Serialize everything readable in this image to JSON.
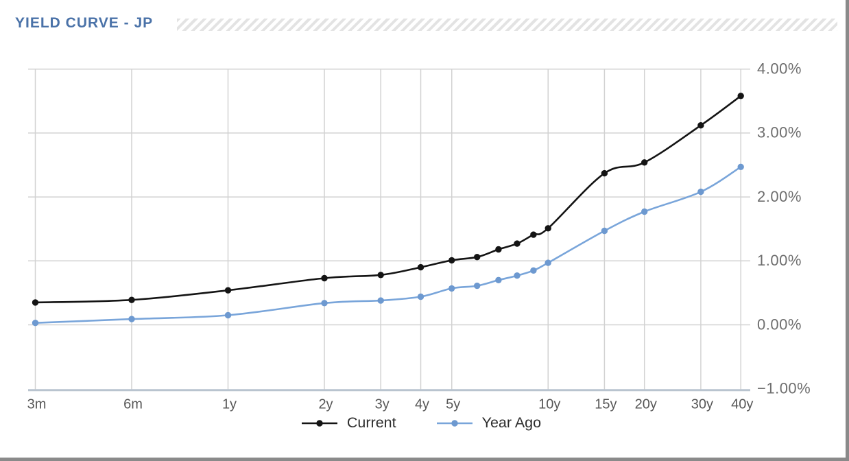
{
  "header": {
    "title": "YIELD CURVE - JP",
    "title_color": "#4a72a8"
  },
  "chart_data": {
    "type": "line",
    "title": "YIELD CURVE - JP",
    "x_scale": "log",
    "xlabel": "",
    "ylabel": "",
    "ylim": [
      -1,
      4
    ],
    "grid": true,
    "legend_position": "bottom",
    "x_maturities_years": [
      0.25,
      0.5,
      1,
      2,
      3,
      4,
      5,
      6,
      7,
      8,
      9,
      10,
      15,
      20,
      30,
      40
    ],
    "x_ticks": [
      {
        "m": 0.25,
        "label": "3m"
      },
      {
        "m": 0.5,
        "label": "6m"
      },
      {
        "m": 1,
        "label": "1y"
      },
      {
        "m": 2,
        "label": "2y"
      },
      {
        "m": 3,
        "label": "3y"
      },
      {
        "m": 4,
        "label": "4y"
      },
      {
        "m": 5,
        "label": "5y"
      },
      {
        "m": 10,
        "label": "10y"
      },
      {
        "m": 15,
        "label": "15y"
      },
      {
        "m": 20,
        "label": "20y"
      },
      {
        "m": 30,
        "label": "30y"
      },
      {
        "m": 40,
        "label": "40y"
      }
    ],
    "y_ticks": [
      {
        "value": 4,
        "label": "4.00%"
      },
      {
        "value": 3,
        "label": "3.00%"
      },
      {
        "value": 2,
        "label": "2.00%"
      },
      {
        "value": 1,
        "label": "1.00%"
      },
      {
        "value": 0,
        "label": "0.00%"
      },
      {
        "value": -1,
        "label": "−1.00%"
      }
    ],
    "series": [
      {
        "name": "Current",
        "color": "#141414",
        "marker_color": "#141414",
        "values": [
          0.35,
          0.39,
          0.54,
          0.73,
          0.78,
          0.9,
          1.01,
          1.06,
          1.18,
          1.27,
          1.41,
          1.51,
          2.37,
          2.54,
          3.12,
          3.58
        ]
      },
      {
        "name": "Year Ago",
        "color": "#79a5da",
        "marker_color": "#6d99d0",
        "values": [
          0.03,
          0.09,
          0.15,
          0.34,
          0.38,
          0.44,
          0.57,
          0.61,
          0.7,
          0.77,
          0.85,
          0.97,
          1.47,
          1.77,
          2.08,
          2.47
        ]
      }
    ],
    "colors": {
      "gridline": "#d2d2d2",
      "axis_line": "#b9c4cf",
      "y_tick_text": "#6e6e6e",
      "x_tick_text": "#565656",
      "legend_text": "#2d2d2d",
      "border": "#8a8a8a"
    }
  }
}
